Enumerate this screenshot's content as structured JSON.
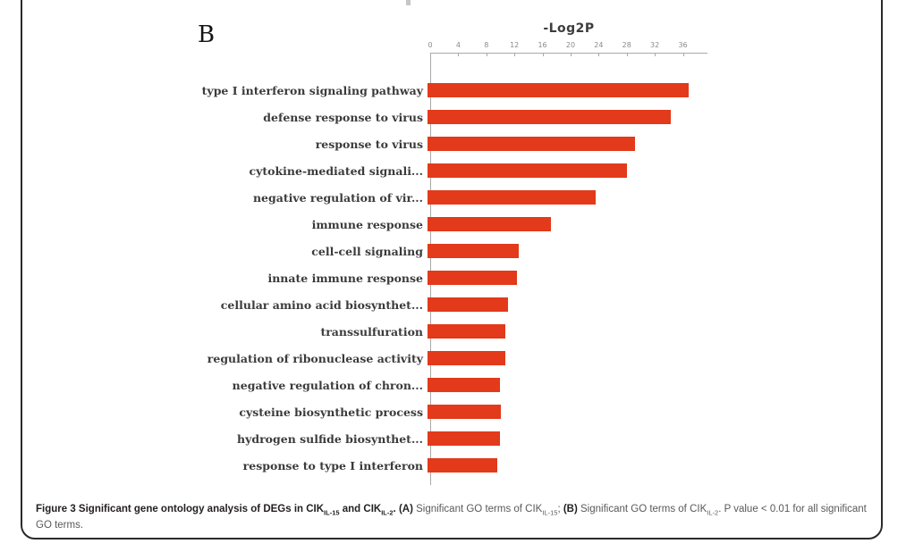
{
  "figure": {
    "panel_label": "B",
    "caption": {
      "segments": [
        {
          "text": "Figure 3 Significant gene ontology analysis of DEGs in CIK",
          "bold": true
        },
        {
          "text": "IL-15",
          "bold": true,
          "sub": true
        },
        {
          "text": " and CIK",
          "bold": true
        },
        {
          "text": "IL-2",
          "bold": true,
          "sub": true
        },
        {
          "text": ". ",
          "bold": true
        },
        {
          "text": "(A)",
          "bold": true
        },
        {
          "text": " Significant GO terms of CIK",
          "bold": false
        },
        {
          "text": "IL-15",
          "bold": false,
          "sub": true
        },
        {
          "text": "; ",
          "bold": false
        },
        {
          "text": "(B)",
          "bold": true
        },
        {
          "text": " Significant GO terms of CIK",
          "bold": false
        },
        {
          "text": "IL-2",
          "bold": false,
          "sub": true
        },
        {
          "text": ". P value < 0.01 for all significant GO terms.",
          "bold": false
        }
      ]
    }
  },
  "chart_data": {
    "type": "bar",
    "orientation": "horizontal",
    "title": "-Log2P",
    "xlabel": "-Log2P",
    "ylabel": "",
    "xlim": [
      0,
      39.5
    ],
    "axis_ticks": [
      0,
      4,
      8,
      12,
      16,
      20,
      24,
      28,
      32,
      36
    ],
    "grid": false,
    "legend": "none",
    "categories": [
      "type I interferon signaling pathway",
      "defense response to virus",
      "response to virus",
      "cytokine-mediated signali...",
      "negative regulation of vir...",
      "immune response",
      "cell-cell signaling",
      "innate immune response",
      "cellular amino acid biosynthet...",
      "transsulfuration",
      "regulation of ribonuclease activity",
      "negative regulation of chron...",
      "cysteine biosynthetic process",
      "hydrogen sulfide biosynthet...",
      "response to type I interferon"
    ],
    "values": [
      37.2,
      34.7,
      29.5,
      28.4,
      24.0,
      17.6,
      13.0,
      12.7,
      11.5,
      11.1,
      11.1,
      10.3,
      10.5,
      10.3,
      9.9
    ],
    "bar_color": "#e23a1a",
    "axis_color": "#a8a8a8",
    "tick_label_color": "#8a8a8a",
    "category_label_color": "#3b3b3b"
  }
}
